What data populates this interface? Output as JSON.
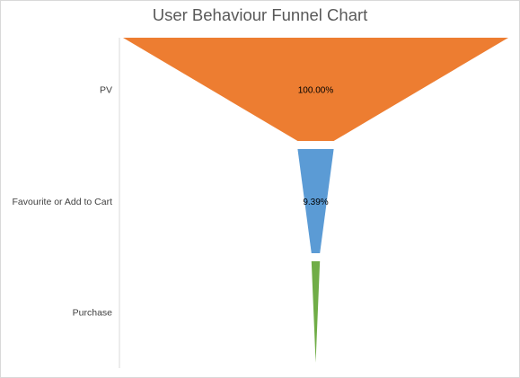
{
  "chart_data": {
    "type": "funnel",
    "title": "User Behaviour Funnel Chart",
    "categories": [
      "PV",
      "Favourite or Add to Cart",
      "Purchase"
    ],
    "values": [
      100.0,
      9.39,
      2.2
    ],
    "value_unit": "%",
    "data_labels": [
      "100.00%",
      "9.39%",
      ""
    ],
    "colors": [
      "#ED7D31",
      "#5B9BD5",
      "#70AD47"
    ],
    "grid": false,
    "legend": "none"
  }
}
